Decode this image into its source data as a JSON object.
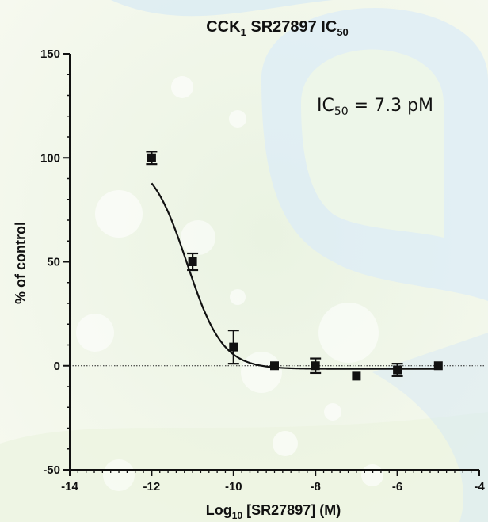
{
  "chart_data": {
    "type": "scatter",
    "title": "CCK",
    "title_sub": "1",
    "title_rest": " SR27897 IC",
    "title_sub2": "50",
    "xlabel_pre": "Log",
    "xlabel_sub": "10",
    "xlabel_post": " [SR27897] (M)",
    "ylabel": "% of control",
    "annotation_pre": "IC",
    "annotation_sub": "50",
    "annotation_post": " = 7.3 pM",
    "xlim": [
      -14,
      -4
    ],
    "ylim": [
      -50,
      150
    ],
    "x_ticks": [
      -14,
      -12,
      -10,
      -8,
      -6,
      -4
    ],
    "x_tick_labels": [
      "-14",
      "-12",
      "-10",
      "-8",
      "-6",
      "-4"
    ],
    "y_ticks": [
      -50,
      0,
      50,
      100,
      150
    ],
    "y_tick_labels": [
      "-50",
      "0",
      "50",
      "100",
      "150"
    ],
    "zero_line": true,
    "points": [
      {
        "x": -12,
        "y": 100,
        "err": 3
      },
      {
        "x": -11,
        "y": 50,
        "err": 4
      },
      {
        "x": -10,
        "y": 9,
        "err": 8
      },
      {
        "x": -9,
        "y": 0,
        "err": 0
      },
      {
        "x": -8,
        "y": 0,
        "err": 3.5
      },
      {
        "x": -7,
        "y": -5,
        "err": 0
      },
      {
        "x": -6,
        "y": -2,
        "err": 3
      },
      {
        "x": -5,
        "y": 0,
        "err": 0
      }
    ],
    "fit": {
      "top": 100,
      "bottom": -1.5,
      "log_ic50": -11.136,
      "hill_slope": -1
    },
    "colors": {
      "points": "#111111",
      "curve": "#111111",
      "axes": "#111111"
    }
  }
}
